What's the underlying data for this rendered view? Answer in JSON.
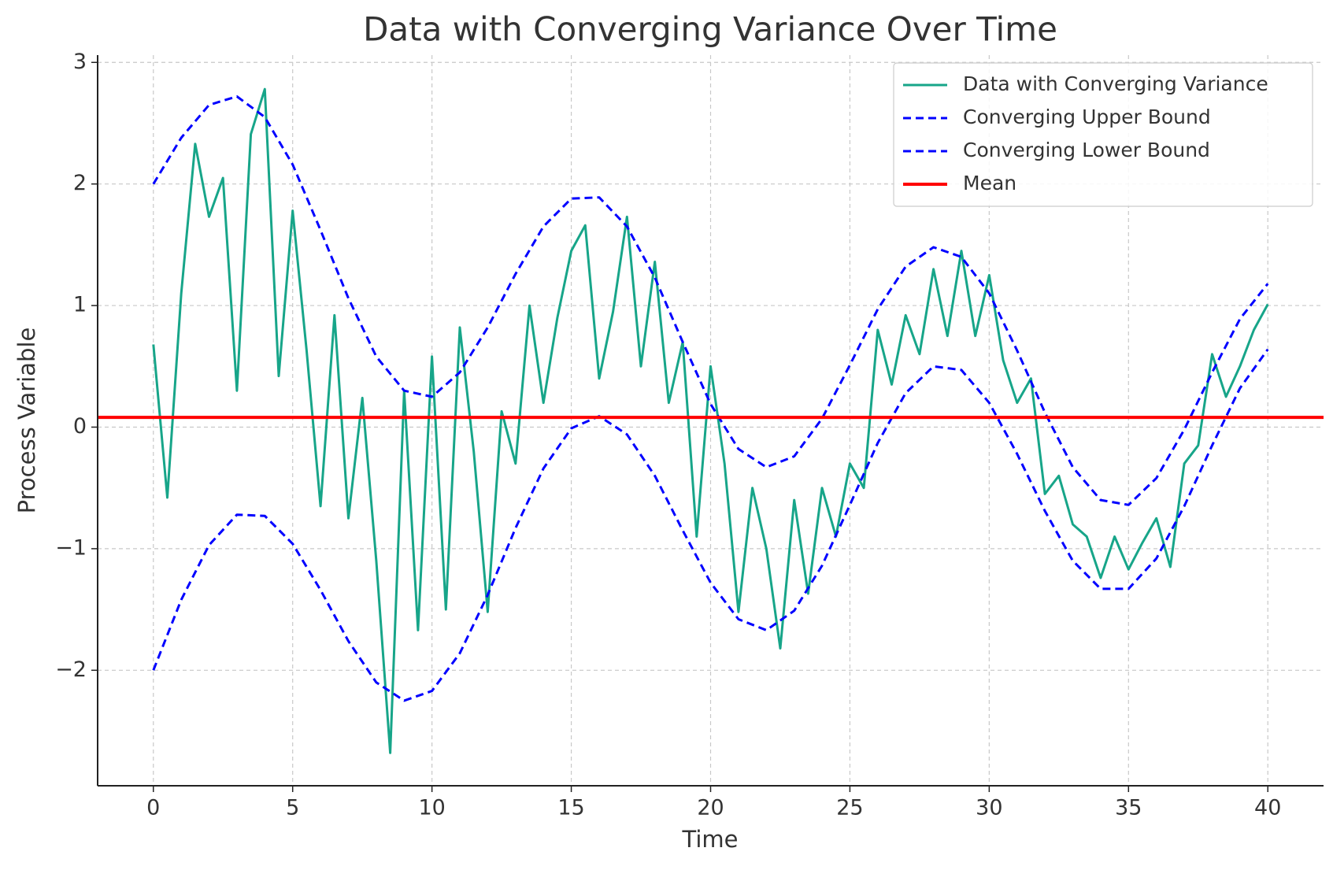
{
  "chart_data": {
    "type": "line",
    "title": "Data with Converging Variance Over Time",
    "x_label": "Time",
    "y_label": "Process Variable",
    "xlim": [
      -2,
      42
    ],
    "ylim": [
      -2.95,
      3.06
    ],
    "xticks": [
      0,
      5,
      10,
      15,
      20,
      25,
      30,
      35,
      40
    ],
    "yticks": [
      {
        "value": -2,
        "label": "−2"
      },
      {
        "value": -1,
        "label": "−1"
      },
      0,
      1,
      2,
      3
    ],
    "grid": true,
    "legend": "upper right",
    "series": [
      {
        "name": "Data with Converging Variance",
        "color": "#17a589",
        "style": "solid",
        "x": [
          0,
          0.5,
          1,
          1.5,
          2,
          2.5,
          3,
          3.5,
          4,
          4.5,
          5,
          5.5,
          6,
          6.5,
          7,
          7.5,
          8,
          8.5,
          9,
          9.5,
          10,
          10.5,
          11,
          11.5,
          12,
          12.5,
          13,
          13.5,
          14,
          14.5,
          15,
          15.5,
          16,
          16.5,
          17,
          17.5,
          18,
          18.5,
          19,
          19.5,
          20,
          20.5,
          21,
          21.5,
          22,
          22.5,
          23,
          23.5,
          24,
          24.5,
          25,
          25.5,
          26,
          26.5,
          27,
          27.5,
          28,
          28.5,
          29,
          29.5,
          30,
          30.5,
          31,
          31.5,
          32,
          32.5,
          33,
          33.5,
          34,
          34.5,
          35,
          35.5,
          36,
          36.5,
          37,
          37.5,
          38,
          38.5,
          39,
          39.5,
          40
        ],
        "values": [
          0.68,
          -0.58,
          1.1,
          2.33,
          1.73,
          2.05,
          0.3,
          2.41,
          2.78,
          0.42,
          1.78,
          0.63,
          -0.65,
          0.92,
          -0.75,
          0.24,
          -1.1,
          -2.68,
          0.3,
          -1.67,
          0.58,
          -1.5,
          0.82,
          -0.2,
          -1.52,
          0.13,
          -0.3,
          1.0,
          0.2,
          0.9,
          1.45,
          1.66,
          0.4,
          0.95,
          1.73,
          0.5,
          1.36,
          0.2,
          0.7,
          -0.9,
          0.5,
          -0.3,
          -1.52,
          -0.5,
          -1.0,
          -1.82,
          -0.6,
          -1.37,
          -0.5,
          -0.9,
          -0.3,
          -0.5,
          0.8,
          0.35,
          0.92,
          0.6,
          1.3,
          0.75,
          1.45,
          0.75,
          1.25,
          0.55,
          0.2,
          0.4,
          -0.55,
          -0.4,
          -0.8,
          -0.9,
          -1.24,
          -0.9,
          -1.17,
          -0.95,
          -0.75,
          -1.15,
          -0.3,
          -0.15,
          0.6,
          0.25,
          0.5,
          0.8,
          1.01
        ]
      },
      {
        "name": "Converging Upper Bound",
        "color": "#0000ff",
        "style": "dashed",
        "x": [
          0,
          1,
          2,
          3,
          4,
          5,
          6,
          7,
          8,
          9,
          10,
          11,
          12,
          13,
          14,
          15,
          16,
          17,
          18,
          19,
          20,
          21,
          22,
          23,
          24,
          25,
          26,
          27,
          28,
          29,
          30,
          31,
          32,
          33,
          34,
          35,
          36,
          37,
          38,
          39,
          40
        ],
        "values": [
          2.0,
          2.38,
          2.65,
          2.72,
          2.55,
          2.16,
          1.62,
          1.06,
          0.58,
          0.3,
          0.25,
          0.45,
          0.82,
          1.26,
          1.65,
          1.88,
          1.89,
          1.65,
          1.23,
          0.7,
          0.19,
          -0.18,
          -0.33,
          -0.24,
          0.07,
          0.51,
          0.97,
          1.32,
          1.48,
          1.4,
          1.1,
          0.63,
          0.12,
          -0.33,
          -0.6,
          -0.64,
          -0.42,
          -0.02,
          0.45,
          0.89,
          1.18
        ]
      },
      {
        "name": "Converging Lower Bound",
        "color": "#0000ff",
        "style": "dashed",
        "x": [
          0,
          1,
          2,
          3,
          4,
          5,
          6,
          7,
          8,
          9,
          10,
          11,
          12,
          13,
          14,
          15,
          16,
          17,
          18,
          19,
          20,
          21,
          22,
          23,
          24,
          25,
          26,
          27,
          28,
          29,
          30,
          31,
          32,
          33,
          34,
          35,
          36,
          37,
          38,
          39,
          40
        ],
        "values": [
          -2.0,
          -1.42,
          -0.97,
          -0.72,
          -0.73,
          -0.96,
          -1.34,
          -1.76,
          -2.1,
          -2.25,
          -2.17,
          -1.86,
          -1.38,
          -0.83,
          -0.34,
          -0.01,
          0.09,
          -0.06,
          -0.4,
          -0.85,
          -1.28,
          -1.58,
          -1.67,
          -1.51,
          -1.14,
          -0.64,
          -0.13,
          0.28,
          0.5,
          0.47,
          0.2,
          -0.22,
          -0.69,
          -1.1,
          -1.33,
          -1.33,
          -1.08,
          -0.65,
          -0.15,
          0.32,
          0.64
        ]
      },
      {
        "name": "Mean",
        "color": "#ff0000",
        "style": "hline",
        "y": 0.08
      }
    ]
  }
}
